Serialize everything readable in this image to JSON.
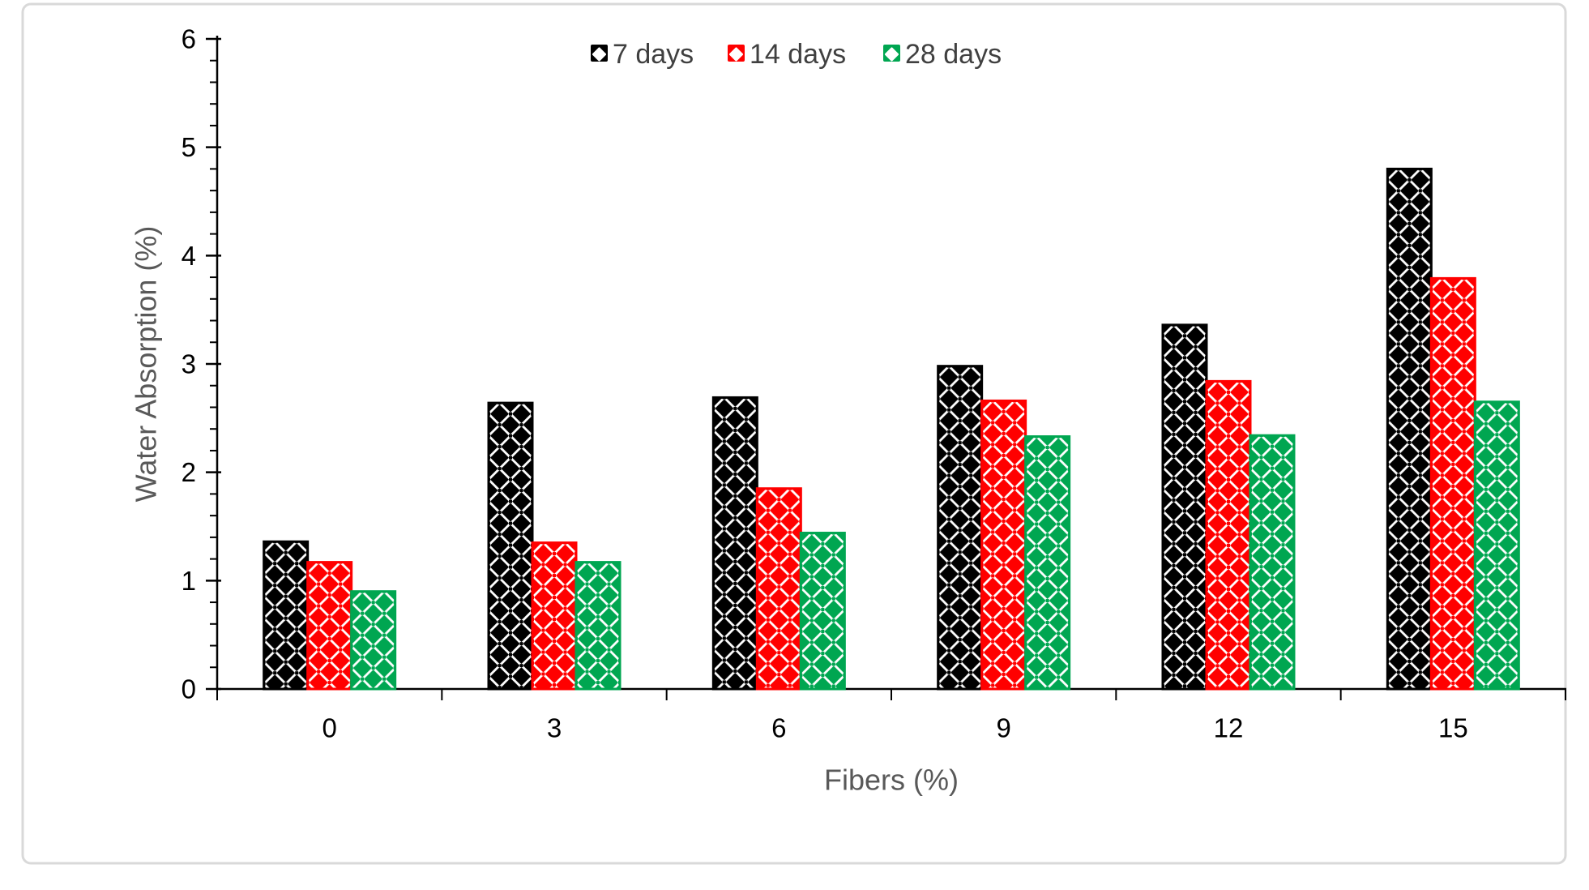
{
  "chart_data": {
    "type": "bar",
    "title": "",
    "xlabel": "Fibers (%)",
    "ylabel": "Water Absorption (%)",
    "categories": [
      "0",
      "3",
      "6",
      "9",
      "12",
      "15"
    ],
    "series": [
      {
        "name": "7 days",
        "color": "#000000",
        "values": [
          1.36,
          2.64,
          2.69,
          2.98,
          3.36,
          4.8
        ]
      },
      {
        "name": "14 days",
        "color": "#FF0000",
        "values": [
          1.17,
          1.35,
          1.85,
          2.66,
          2.84,
          3.79
        ]
      },
      {
        "name": "28 days",
        "color": "#00A651",
        "values": [
          0.9,
          1.17,
          1.44,
          2.33,
          2.34,
          2.65
        ]
      }
    ],
    "ylim": [
      0,
      6
    ],
    "y_major_ticks": [
      0,
      1,
      2,
      3,
      4,
      5,
      6
    ],
    "y_minor_step": 0.2,
    "x_minor_ticks_between_categories": true,
    "grid": false,
    "legend_position": "top-center",
    "bar_pattern": "diamond-checker",
    "axis_color": "#000000",
    "axis_text_color": "#000000",
    "label_text_color": "#595959",
    "legend_text_color": "#404040",
    "frame_border_color": "#D9D9D9",
    "background_color": "#FFFFFF"
  }
}
